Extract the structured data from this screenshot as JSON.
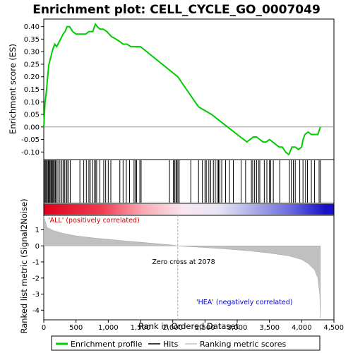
{
  "chart_data": {
    "type": "line",
    "title": "Enrichment plot: CELL_CYCLE_GO_0007049",
    "ylabel_top": "Enrichment score (ES)",
    "ylabel_bottom": "Ranked list metric (Signal2Noise)",
    "xlabel": "Rank in Ordered Dataset",
    "x_ticks": [
      "0",
      "500",
      "1,000",
      "1,500",
      "2,000",
      "2,500",
      "3,000",
      "3,500",
      "4,000",
      "4,500"
    ],
    "x_tick_values": [
      0,
      500,
      1000,
      1500,
      2000,
      2500,
      3000,
      3500,
      4000,
      4500
    ],
    "xlim": [
      0,
      4500
    ],
    "es_yticks": [
      "-0.10",
      "-0.05",
      "0.00",
      "0.05",
      "0.10",
      "0.15",
      "0.20",
      "0.25",
      "0.30",
      "0.35",
      "0.40"
    ],
    "es_ytick_values": [
      -0.1,
      -0.05,
      0.0,
      0.05,
      0.1,
      0.15,
      0.2,
      0.25,
      0.3,
      0.35,
      0.4
    ],
    "es_ylim": [
      -0.13,
      0.43
    ],
    "metric_yticks": [
      "1",
      "0",
      "-1",
      "-2",
      "-3",
      "-4"
    ],
    "metric_ytick_values": [
      1,
      0,
      -1,
      -2,
      -3,
      -4
    ],
    "metric_ylim": [
      -4.6,
      1.9
    ],
    "es_series": {
      "name": "Enrichment profile",
      "color": "#00cc00",
      "x": [
        0,
        20,
        40,
        60,
        80,
        100,
        120,
        140,
        170,
        200,
        240,
        280,
        300,
        330,
        360,
        400,
        450,
        500,
        550,
        600,
        650,
        700,
        730,
        760,
        800,
        830,
        870,
        920,
        980,
        1050,
        1120,
        1180,
        1230,
        1290,
        1350,
        1400,
        1450,
        1500,
        2078,
        2400,
        2600,
        2750,
        2900,
        3050,
        3150,
        3250,
        3300,
        3350,
        3400,
        3450,
        3500,
        3550,
        3600,
        3650,
        3700,
        3750,
        3800,
        3850,
        3900,
        3950,
        4000,
        4020,
        4050,
        4100,
        4150,
        4200,
        4250,
        4290
      ],
      "y": [
        0.0,
        0.1,
        0.14,
        0.2,
        0.25,
        0.27,
        0.29,
        0.31,
        0.33,
        0.32,
        0.34,
        0.36,
        0.37,
        0.38,
        0.4,
        0.4,
        0.38,
        0.37,
        0.37,
        0.37,
        0.37,
        0.38,
        0.38,
        0.38,
        0.41,
        0.4,
        0.39,
        0.39,
        0.38,
        0.36,
        0.35,
        0.34,
        0.33,
        0.33,
        0.32,
        0.32,
        0.32,
        0.32,
        0.2,
        0.08,
        0.05,
        0.02,
        -0.01,
        -0.04,
        -0.06,
        -0.04,
        -0.04,
        -0.05,
        -0.06,
        -0.06,
        -0.05,
        -0.06,
        -0.07,
        -0.08,
        -0.08,
        -0.1,
        -0.11,
        -0.08,
        -0.08,
        -0.09,
        -0.08,
        -0.05,
        -0.03,
        -0.02,
        -0.03,
        -0.03,
        -0.03,
        0.0
      ]
    },
    "hits_x": [
      10,
      25,
      40,
      55,
      70,
      80,
      95,
      110,
      120,
      135,
      150,
      165,
      180,
      200,
      220,
      250,
      280,
      300,
      320,
      345,
      360,
      380,
      410,
      560,
      620,
      660,
      700,
      720,
      760,
      790,
      800,
      820,
      870,
      930,
      960,
      1000,
      1040,
      1180,
      1230,
      1280,
      1330,
      1400,
      1420,
      1440,
      1490,
      1510,
      1950,
      2010,
      2030,
      2050,
      2060,
      2080,
      2100,
      2280,
      2400,
      2460,
      2500,
      2520,
      2560,
      2590,
      2630,
      2660,
      2690,
      2710,
      2730,
      2760,
      2820,
      2880,
      2940,
      3060,
      3130,
      3220,
      3240,
      3270,
      3300,
      3330,
      3350,
      3420,
      3460,
      3500,
      3520,
      3560,
      3660,
      3810,
      3840,
      3870,
      3900,
      3970,
      4020,
      4060,
      4090,
      4150,
      4200,
      4270,
      4290
    ],
    "zero_cross_label": "Zero cross at 2078",
    "zero_cross_x": 2078,
    "pos_label": "'ALL' (positively correlated)",
    "neg_label": "'HEA' (negatively correlated)",
    "metric_curve": {
      "x": [
        0,
        50,
        150,
        300,
        500,
        800,
        1200,
        1600,
        2000,
        2078,
        2400,
        2800,
        3200,
        3500,
        3800,
        4000,
        4100,
        4200,
        4250,
        4280,
        4290
      ],
      "y": [
        1.85,
        1.15,
        0.95,
        0.78,
        0.62,
        0.48,
        0.33,
        0.19,
        0.05,
        0.0,
        -0.08,
        -0.18,
        -0.32,
        -0.45,
        -0.62,
        -0.85,
        -1.1,
        -1.5,
        -2.0,
        -3.0,
        -4.5
      ]
    },
    "legend": [
      {
        "label": "Enrichment profile",
        "color": "#00cc00"
      },
      {
        "label": "Hits",
        "color": "#000000"
      },
      {
        "label": "Ranking metric scores",
        "color": "#c0c0c0"
      }
    ]
  }
}
